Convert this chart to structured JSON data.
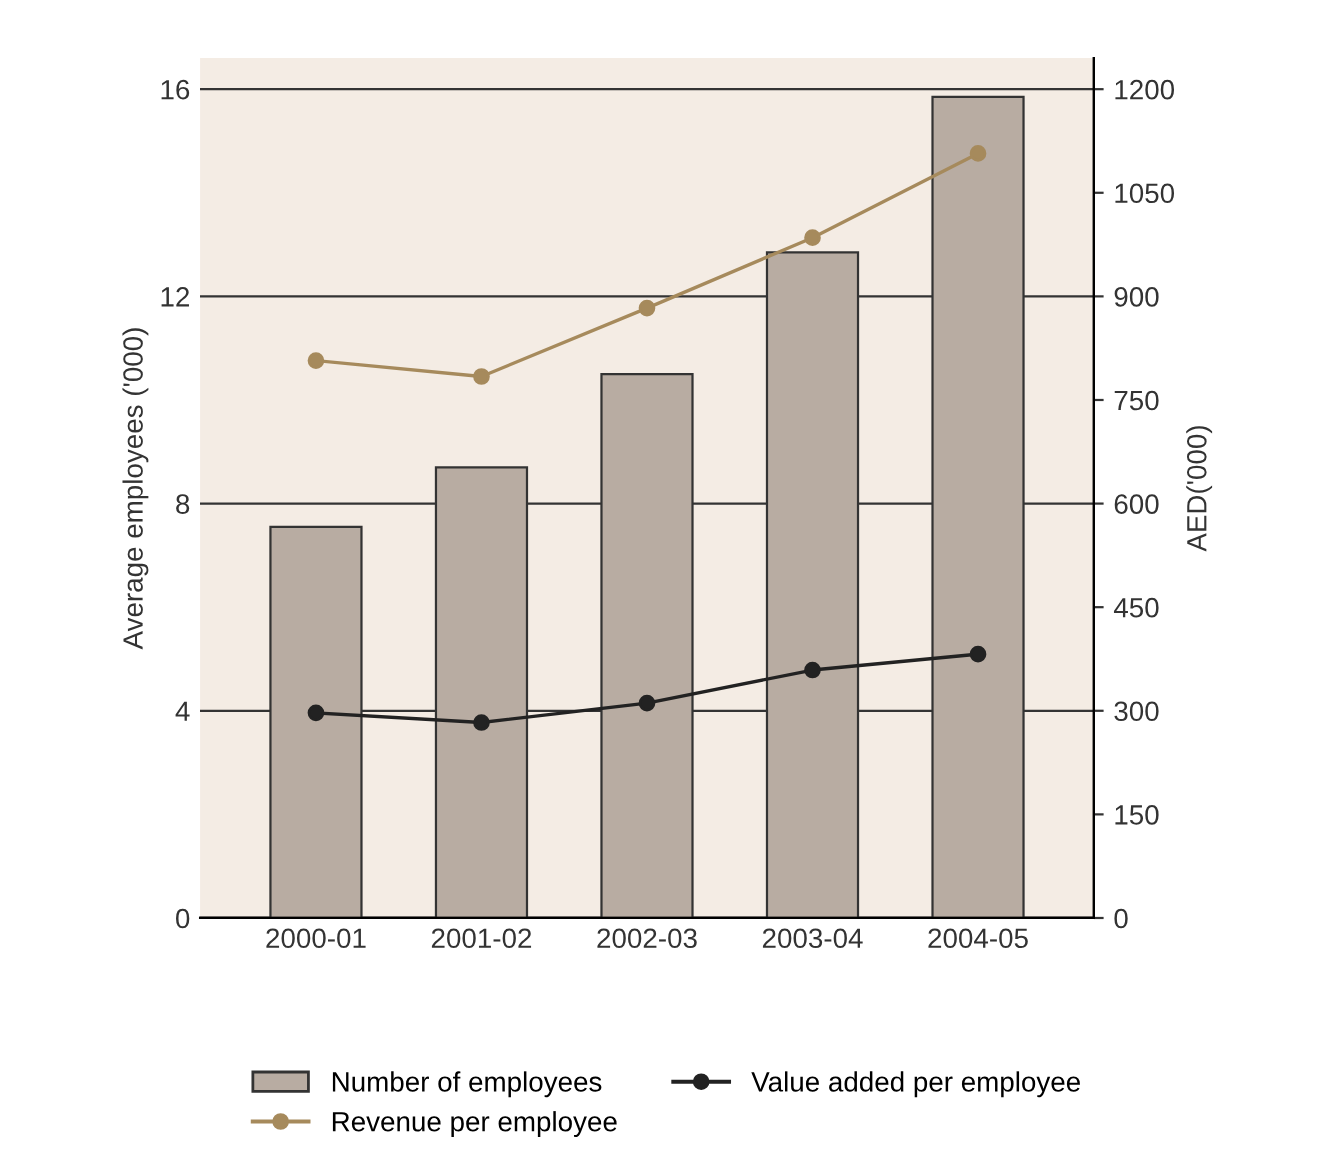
{
  "chart_data": {
    "type": "bar",
    "categories": [
      "2000-01",
      "2001-02",
      "2002-03",
      "2003-04",
      "2004-05"
    ],
    "ylabel": "Average employees ('000)",
    "y2label": "AED('000)",
    "ylim": [
      0,
      16.6
    ],
    "yticks": [
      0,
      4,
      8,
      12,
      16
    ],
    "y2lim": [
      0,
      1245
    ],
    "y2ticks": [
      0,
      150,
      300,
      450,
      600,
      750,
      900,
      1050,
      1200
    ],
    "grid": "y",
    "legend": "bottom",
    "marker": "circle",
    "series": [
      {
        "name": "Number of employees",
        "color": "#b8aca2",
        "values": [
          7.55,
          8.7,
          10.5,
          12.85,
          15.85
        ]
      },
      {
        "name": "Revenue per employee",
        "type": "line",
        "axis": "y2",
        "color": "#a68a5c",
        "values": [
          807,
          784,
          883,
          985,
          1107
        ]
      },
      {
        "name": "Value added per employee",
        "type": "line",
        "axis": "y2",
        "color": "#222222",
        "values": [
          297,
          283,
          311,
          359,
          382
        ]
      }
    ]
  }
}
